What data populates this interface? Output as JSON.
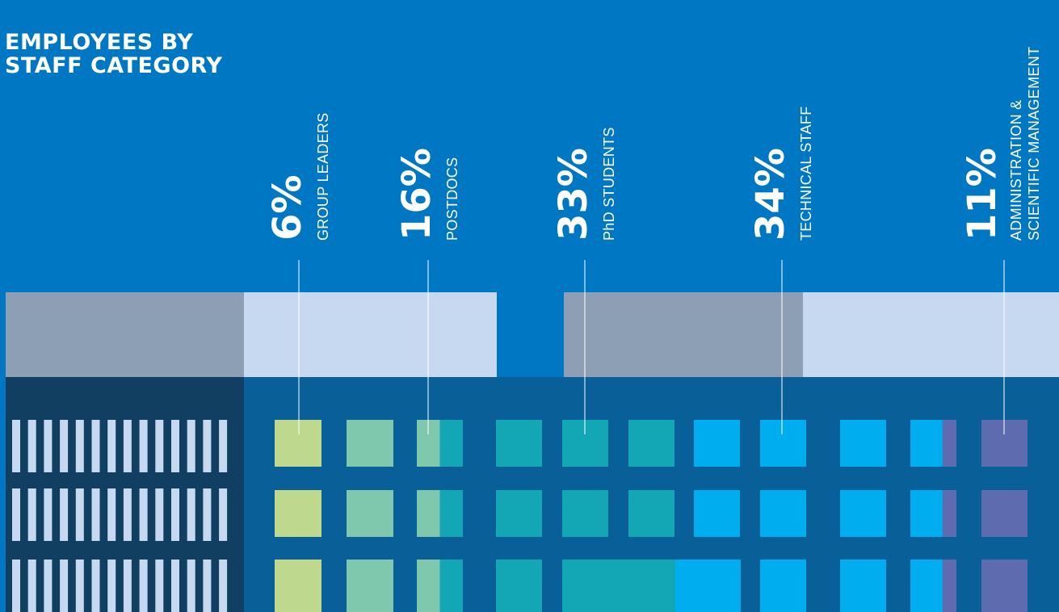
{
  "title": {
    "line1": "EMPLOYEES BY",
    "line2": "STAFF CATEGORY"
  },
  "chart_data": {
    "type": "bar",
    "title": "EMPLOYEES BY STAFF CATEGORY",
    "unit": "%",
    "categories": [
      "GROUP LEADERS",
      "POSTDOCS",
      "PhD STUDENTS",
      "TECHNICAL STAFF",
      "ADMINISTRATION & SCIENTIFIC MANAGEMENT"
    ],
    "values": [
      6,
      16,
      33,
      34,
      11
    ],
    "series": [
      {
        "label": "GROUP LEADERS",
        "lines": [
          "GROUP LEADERS"
        ],
        "value": 6,
        "color": "#bed98e"
      },
      {
        "label": "POSTDOCS",
        "lines": [
          "POSTDOCS"
        ],
        "value": 16,
        "color": "#7fc8ae"
      },
      {
        "label": "PhD STUDENTS",
        "lines": [
          "PhD STUDENTS"
        ],
        "value": 33,
        "color": "#13a7b5"
      },
      {
        "label": "TECHNICAL STAFF",
        "lines": [
          "TECHNICAL STAFF"
        ],
        "value": 34,
        "color": "#00adee"
      },
      {
        "label": "ADMINISTRATION & SCIENTIFIC MANAGEMENT",
        "lines": [
          "ADMINISTRATION &",
          "SCIENTIFIC MANAGEMENT"
        ],
        "value": 11,
        "color": "#5f6baf"
      }
    ],
    "legend": "none",
    "grid": false
  }
}
